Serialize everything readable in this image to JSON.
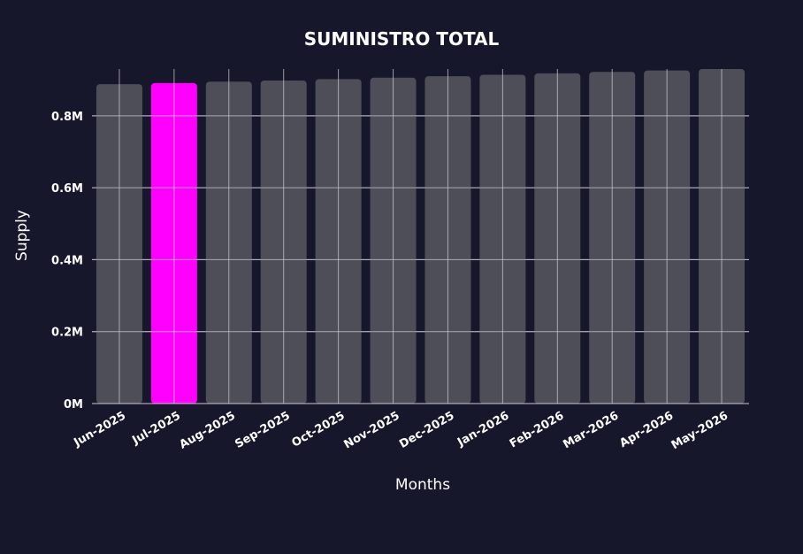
{
  "chart_data": {
    "type": "bar",
    "title": "SUMINISTRO TOTAL",
    "xlabel": "Months",
    "ylabel": "Supply",
    "categories": [
      "Jun-2025",
      "Jul-2025",
      "Aug-2025",
      "Sep-2025",
      "Oct-2025",
      "Nov-2025",
      "Dec-2025",
      "Jan-2026",
      "Feb-2026",
      "Mar-2026",
      "Apr-2026",
      "May-2026"
    ],
    "values": [
      888000,
      891000,
      895000,
      898000,
      902000,
      906000,
      910000,
      914000,
      918000,
      922000,
      926000,
      930000
    ],
    "highlight_index": 1,
    "ylim": [
      0,
      930000
    ],
    "yticks": [
      0,
      200000,
      400000,
      600000,
      800000
    ],
    "ytick_labels": [
      "0M",
      "0.2M",
      "0.4M",
      "0.6M",
      "0.8M"
    ],
    "grid": true,
    "colors": {
      "background": "#16172a",
      "bar": "#4d4e58",
      "highlight": "#ff00ff",
      "text": "#ffffff",
      "grid": "#c8c8d0"
    }
  }
}
